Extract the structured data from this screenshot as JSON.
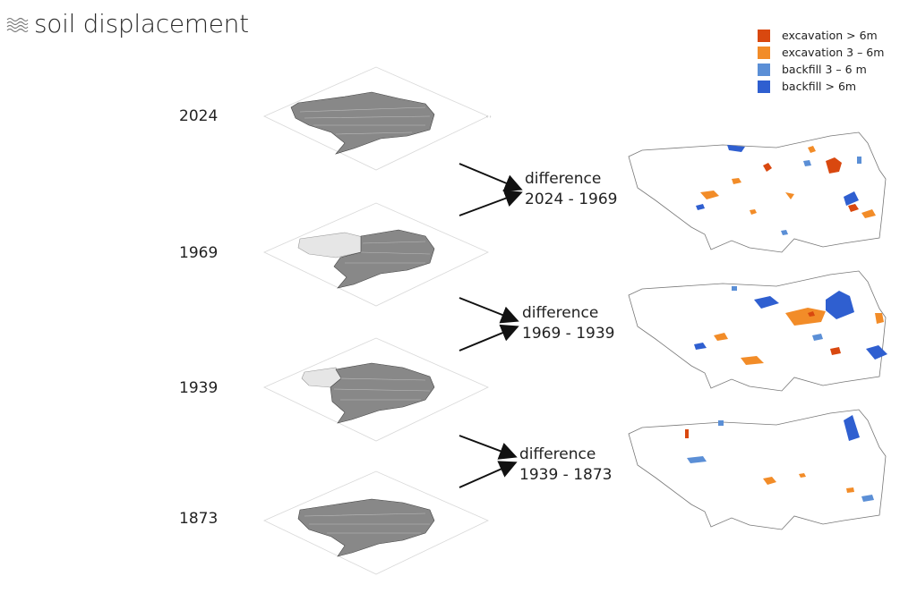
{
  "header": {
    "title": "soil displacement",
    "icon": "terrain-lines-icon"
  },
  "legend": [
    {
      "label": "excavation > 6m",
      "color": "#d9480f"
    },
    {
      "label": "excavation 3 – 6m",
      "color": "#f28c28"
    },
    {
      "label": "backfill 3 – 6 m",
      "color": "#5b8fd6"
    },
    {
      "label": "backfill > 6m",
      "color": "#2f5fd0"
    }
  ],
  "years": [
    "2024",
    "1969",
    "1939",
    "1873"
  ],
  "differences": [
    {
      "line1": "difference",
      "line2": "2024 - 1969"
    },
    {
      "line1": "difference",
      "line2": "1969 - 1939"
    },
    {
      "line1": "difference",
      "line2": "1939 - 1873"
    }
  ]
}
